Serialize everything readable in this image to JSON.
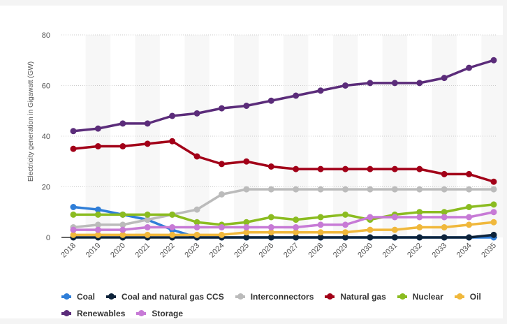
{
  "chart_data": {
    "type": "line",
    "title": "",
    "xlabel": "",
    "ylabel": "Electricity generation in Gigawatt (GW)",
    "x": [
      "2018",
      "2019",
      "2020",
      "2021",
      "2022",
      "2023",
      "2024",
      "2025",
      "2026",
      "2027",
      "2028",
      "2029",
      "2030",
      "2031",
      "2032",
      "2033",
      "2034",
      "2035"
    ],
    "ylim": [
      0,
      80
    ],
    "yticks": [
      "0",
      "20",
      "40",
      "60",
      "80"
    ],
    "grid": true,
    "legend": "bottom",
    "series": [
      {
        "name": "Coal",
        "color": "#2f7ed8",
        "values": [
          12,
          11,
          9,
          7,
          3,
          0,
          0,
          0,
          0,
          0,
          0,
          0,
          0,
          0,
          0,
          0,
          0,
          0
        ]
      },
      {
        "name": "Coal and natural gas CCS",
        "color": "#0d233a",
        "values": [
          0,
          0,
          0,
          0,
          0,
          0,
          0,
          0,
          0,
          0,
          0,
          0,
          0,
          0,
          0,
          0,
          0,
          1
        ]
      },
      {
        "name": "Interconnectors",
        "color": "#bbbbbb",
        "values": [
          4,
          5,
          5,
          7,
          9,
          11,
          17,
          19,
          19,
          19,
          19,
          19,
          19,
          19,
          19,
          19,
          19,
          19
        ]
      },
      {
        "name": "Natural gas",
        "color": "#a20018",
        "values": [
          35,
          36,
          36,
          37,
          38,
          32,
          29,
          30,
          28,
          27,
          27,
          27,
          27,
          27,
          27,
          25,
          25,
          22
        ]
      },
      {
        "name": "Nuclear",
        "color": "#8bbc21",
        "values": [
          9,
          9,
          9,
          9,
          9,
          6,
          5,
          6,
          8,
          7,
          8,
          9,
          7,
          9,
          10,
          10,
          12,
          13
        ]
      },
      {
        "name": "Oil",
        "color": "#f0b83c",
        "values": [
          1,
          1,
          1,
          1,
          1,
          1,
          1,
          2,
          2,
          2,
          2,
          2,
          3,
          3,
          4,
          4,
          5,
          6
        ]
      },
      {
        "name": "Renewables",
        "color": "#5b2c7a",
        "values": [
          42,
          43,
          45,
          45,
          48,
          49,
          51,
          52,
          54,
          56,
          58,
          60,
          61,
          61,
          61,
          63,
          67,
          70
        ]
      },
      {
        "name": "Storage",
        "color": "#c77ad6",
        "values": [
          3,
          3,
          3,
          4,
          4,
          4,
          4,
          4,
          4,
          4,
          5,
          5,
          8,
          8,
          8,
          8,
          8,
          10
        ]
      }
    ]
  }
}
